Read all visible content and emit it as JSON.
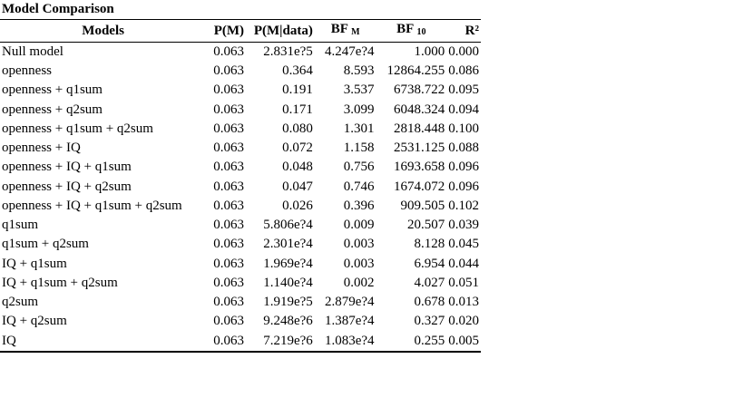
{
  "title": "Model Comparison",
  "headers": {
    "models": "Models",
    "pm": "P(M)",
    "pmd": "P(M|data)",
    "bfm": "BF",
    "bfm_sub": "M",
    "bf10": "BF",
    "bf10_sub": "10",
    "r2": "R²"
  },
  "rows": [
    {
      "model": "Null model",
      "pm": "0.063",
      "pmd": "2.831e?5",
      "bfm": "4.247e?4",
      "bf10": "1.000",
      "r2": "0.000"
    },
    {
      "model": "openness",
      "pm": "0.063",
      "pmd": "0.364",
      "bfm": "8.593",
      "bf10": "12864.255",
      "r2": "0.086"
    },
    {
      "model": "openness + q1sum",
      "pm": "0.063",
      "pmd": "0.191",
      "bfm": "3.537",
      "bf10": "6738.722",
      "r2": "0.095"
    },
    {
      "model": "openness + q2sum",
      "pm": "0.063",
      "pmd": "0.171",
      "bfm": "3.099",
      "bf10": "6048.324",
      "r2": "0.094"
    },
    {
      "model": "openness + q1sum + q2sum",
      "pm": "0.063",
      "pmd": "0.080",
      "bfm": "1.301",
      "bf10": "2818.448",
      "r2": "0.100"
    },
    {
      "model": "openness + IQ",
      "pm": "0.063",
      "pmd": "0.072",
      "bfm": "1.158",
      "bf10": "2531.125",
      "r2": "0.088"
    },
    {
      "model": "openness + IQ + q1sum",
      "pm": "0.063",
      "pmd": "0.048",
      "bfm": "0.756",
      "bf10": "1693.658",
      "r2": "0.096"
    },
    {
      "model": "openness + IQ + q2sum",
      "pm": "0.063",
      "pmd": "0.047",
      "bfm": "0.746",
      "bf10": "1674.072",
      "r2": "0.096"
    },
    {
      "model": "openness + IQ + q1sum + q2sum",
      "pm": "0.063",
      "pmd": "0.026",
      "bfm": "0.396",
      "bf10": "909.505",
      "r2": "0.102"
    },
    {
      "model": "q1sum",
      "pm": "0.063",
      "pmd": "5.806e?4",
      "bfm": "0.009",
      "bf10": "20.507",
      "r2": "0.039"
    },
    {
      "model": "q1sum + q2sum",
      "pm": "0.063",
      "pmd": "2.301e?4",
      "bfm": "0.003",
      "bf10": "8.128",
      "r2": "0.045"
    },
    {
      "model": "IQ + q1sum",
      "pm": "0.063",
      "pmd": "1.969e?4",
      "bfm": "0.003",
      "bf10": "6.954",
      "r2": "0.044"
    },
    {
      "model": "IQ + q1sum + q2sum",
      "pm": "0.063",
      "pmd": "1.140e?4",
      "bfm": "0.002",
      "bf10": "4.027",
      "r2": "0.051"
    },
    {
      "model": "q2sum",
      "pm": "0.063",
      "pmd": "1.919e?5",
      "bfm": "2.879e?4",
      "bf10": "0.678",
      "r2": "0.013"
    },
    {
      "model": "IQ + q2sum",
      "pm": "0.063",
      "pmd": "9.248e?6",
      "bfm": "1.387e?4",
      "bf10": "0.327",
      "r2": "0.020"
    },
    {
      "model": "IQ",
      "pm": "0.063",
      "pmd": "7.219e?6",
      "bfm": "1.083e?4",
      "bf10": "0.255",
      "r2": "0.005"
    }
  ]
}
